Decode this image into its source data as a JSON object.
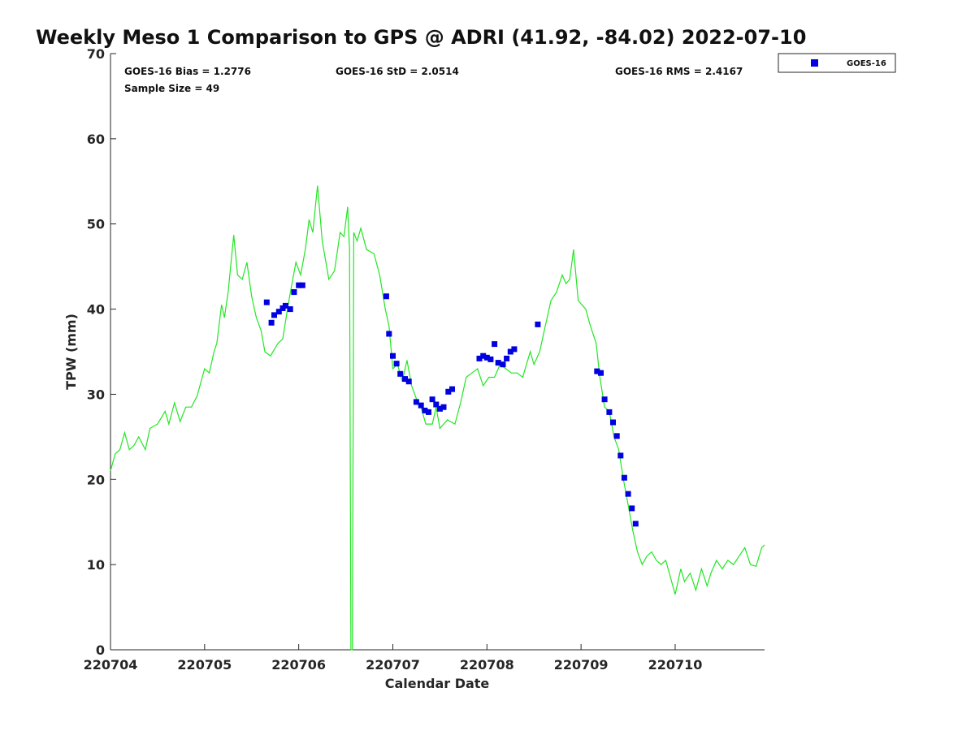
{
  "chart_data": {
    "type": "scatter",
    "title": "Weekly Meso 1 Comparison to GPS @ ADRI (41.92, -84.02) 2022-07-10",
    "xlabel": "Calendar Date",
    "ylabel": "TPW (mm)",
    "xlim": [
      220704,
      220711
    ],
    "ylim": [
      0,
      70
    ],
    "x_ticks": [
      "220704",
      "220705",
      "220706",
      "220707",
      "220708",
      "220709",
      "220710"
    ],
    "y_ticks": [
      "0",
      "10",
      "20",
      "30",
      "40",
      "50",
      "60",
      "70"
    ],
    "legend_position": "top-right",
    "legend": [
      {
        "name": "GOES-16",
        "marker": "square",
        "color": "#0000e0"
      }
    ],
    "stats": {
      "bias": "GOES-16 Bias = 1.2776",
      "std": "GOES-16 StD = 2.0514",
      "rms": "GOES-16 RMS = 2.4167",
      "sample": "Sample Size = 49"
    },
    "gps_line": {
      "color": "#22e622",
      "points": [
        [
          220704.0,
          21.0
        ],
        [
          220704.05,
          23.0
        ],
        [
          220704.1,
          23.5
        ],
        [
          220704.15,
          25.5
        ],
        [
          220704.2,
          23.5
        ],
        [
          220704.25,
          24.0
        ],
        [
          220704.3,
          25.0
        ],
        [
          220704.37,
          23.5
        ],
        [
          220704.42,
          26.0
        ],
        [
          220704.5,
          26.5
        ],
        [
          220704.58,
          28.0
        ],
        [
          220704.62,
          26.5
        ],
        [
          220704.68,
          29.0
        ],
        [
          220704.74,
          26.8
        ],
        [
          220704.8,
          28.5
        ],
        [
          220704.86,
          28.5
        ],
        [
          220704.92,
          29.8
        ],
        [
          220705.0,
          33.0
        ],
        [
          220705.05,
          32.5
        ],
        [
          220705.1,
          35.0
        ],
        [
          220705.13,
          36.0
        ],
        [
          220705.18,
          40.5
        ],
        [
          220705.21,
          39.0
        ],
        [
          220705.25,
          42.0
        ],
        [
          220705.29,
          46.5
        ],
        [
          220705.31,
          48.7
        ],
        [
          220705.35,
          44.0
        ],
        [
          220705.4,
          43.5
        ],
        [
          220705.45,
          45.5
        ],
        [
          220705.5,
          41.5
        ],
        [
          220705.55,
          39.0
        ],
        [
          220705.6,
          37.5
        ],
        [
          220705.64,
          35.0
        ],
        [
          220705.7,
          34.5
        ],
        [
          220705.78,
          36.0
        ],
        [
          220705.83,
          36.5
        ],
        [
          220705.88,
          40.0
        ],
        [
          220705.92,
          42.5
        ],
        [
          220705.97,
          45.5
        ],
        [
          220706.02,
          44.0
        ],
        [
          220706.07,
          47.0
        ],
        [
          220706.11,
          50.5
        ],
        [
          220706.15,
          49.0
        ],
        [
          220706.2,
          54.5
        ],
        [
          220706.25,
          48.0
        ],
        [
          220706.32,
          43.5
        ],
        [
          220706.38,
          44.5
        ],
        [
          220706.44,
          49.0
        ],
        [
          220706.48,
          48.5
        ],
        [
          220706.52,
          52.0
        ],
        [
          220706.54,
          47.0
        ],
        [
          220706.555,
          0.0
        ],
        [
          220706.57,
          0.0
        ],
        [
          220706.585,
          49.0
        ],
        [
          220706.62,
          48.0
        ],
        [
          220706.66,
          49.5
        ],
        [
          220706.72,
          47.0
        ],
        [
          220706.8,
          46.5
        ],
        [
          220706.86,
          44.0
        ],
        [
          220706.92,
          40.0
        ],
        [
          220706.96,
          38.0
        ],
        [
          220707.0,
          33.0
        ],
        [
          220707.05,
          33.5
        ],
        [
          220707.1,
          31.5
        ],
        [
          220707.15,
          34.0
        ],
        [
          220707.2,
          31.0
        ],
        [
          220707.25,
          29.5
        ],
        [
          220707.3,
          28.5
        ],
        [
          220707.35,
          26.5
        ],
        [
          220707.42,
          26.5
        ],
        [
          220707.46,
          28.5
        ],
        [
          220707.5,
          26.0
        ],
        [
          220707.58,
          27.0
        ],
        [
          220707.66,
          26.5
        ],
        [
          220707.72,
          29.0
        ],
        [
          220707.78,
          32.0
        ],
        [
          220707.84,
          32.5
        ],
        [
          220707.9,
          33.0
        ],
        [
          220707.96,
          31.0
        ],
        [
          220708.02,
          32.0
        ],
        [
          220708.08,
          32.0
        ],
        [
          220708.14,
          33.5
        ],
        [
          220708.2,
          33.0
        ],
        [
          220708.26,
          32.5
        ],
        [
          220708.32,
          32.5
        ],
        [
          220708.38,
          32.0
        ],
        [
          220708.46,
          35.0
        ],
        [
          220708.5,
          33.5
        ],
        [
          220708.56,
          35.0
        ],
        [
          220708.62,
          38.0
        ],
        [
          220708.68,
          41.0
        ],
        [
          220708.74,
          42.0
        ],
        [
          220708.8,
          44.0
        ],
        [
          220708.84,
          43.0
        ],
        [
          220708.88,
          43.5
        ],
        [
          220708.92,
          47.0
        ],
        [
          220708.97,
          41.0
        ],
        [
          220709.05,
          40.0
        ],
        [
          220709.1,
          38.0
        ],
        [
          220709.16,
          36.0
        ],
        [
          220709.2,
          32.0
        ],
        [
          220709.25,
          28.5
        ],
        [
          220709.3,
          28.0
        ],
        [
          220709.35,
          25.0
        ],
        [
          220709.4,
          23.5
        ],
        [
          220709.45,
          20.0
        ],
        [
          220709.5,
          17.0
        ],
        [
          220709.55,
          14.0
        ],
        [
          220709.6,
          11.5
        ],
        [
          220709.65,
          10.0
        ],
        [
          220709.7,
          11.0
        ],
        [
          220709.75,
          11.5
        ],
        [
          220709.8,
          10.5
        ],
        [
          220709.85,
          10.0
        ],
        [
          220709.9,
          10.5
        ],
        [
          220709.95,
          8.5
        ],
        [
          220710.0,
          6.5
        ],
        [
          220710.06,
          9.5
        ],
        [
          220710.1,
          8.0
        ],
        [
          220710.16,
          9.0
        ],
        [
          220710.22,
          7.0
        ],
        [
          220710.28,
          9.5
        ],
        [
          220710.34,
          7.5
        ],
        [
          220710.38,
          9.0
        ],
        [
          220710.44,
          10.5
        ],
        [
          220710.5,
          9.5
        ],
        [
          220710.56,
          10.5
        ],
        [
          220710.62,
          10.0
        ],
        [
          220710.68,
          11.0
        ],
        [
          220710.74,
          12.0
        ],
        [
          220710.8,
          10.0
        ],
        [
          220710.86,
          9.8
        ],
        [
          220710.92,
          12.0
        ],
        [
          220710.95,
          12.3
        ]
      ]
    },
    "series": [
      {
        "name": "GOES-16",
        "marker": "square",
        "color": "#0000e0",
        "points": [
          [
            220705.66,
            40.8
          ],
          [
            220705.71,
            38.4
          ],
          [
            220705.74,
            39.3
          ],
          [
            220705.79,
            39.7
          ],
          [
            220705.83,
            40.1
          ],
          [
            220705.86,
            40.4
          ],
          [
            220705.91,
            40.0
          ],
          [
            220705.95,
            42.0
          ],
          [
            220706.0,
            42.8
          ],
          [
            220706.04,
            42.8
          ],
          [
            220706.93,
            41.5
          ],
          [
            220706.96,
            37.1
          ],
          [
            220707.0,
            34.5
          ],
          [
            220707.04,
            33.6
          ],
          [
            220707.08,
            32.4
          ],
          [
            220707.13,
            31.8
          ],
          [
            220707.17,
            31.5
          ],
          [
            220707.25,
            29.1
          ],
          [
            220707.3,
            28.7
          ],
          [
            220707.34,
            28.1
          ],
          [
            220707.38,
            27.9
          ],
          [
            220707.42,
            29.4
          ],
          [
            220707.46,
            28.8
          ],
          [
            220707.5,
            28.3
          ],
          [
            220707.54,
            28.5
          ],
          [
            220707.59,
            30.3
          ],
          [
            220707.63,
            30.6
          ],
          [
            220707.92,
            34.2
          ],
          [
            220707.96,
            34.5
          ],
          [
            220708.0,
            34.3
          ],
          [
            220708.04,
            34.1
          ],
          [
            220708.08,
            35.9
          ],
          [
            220708.12,
            33.7
          ],
          [
            220708.17,
            33.5
          ],
          [
            220708.21,
            34.2
          ],
          [
            220708.25,
            35.0
          ],
          [
            220708.29,
            35.3
          ],
          [
            220708.54,
            38.2
          ],
          [
            220709.17,
            32.7
          ],
          [
            220709.21,
            32.5
          ],
          [
            220709.25,
            29.4
          ],
          [
            220709.3,
            27.9
          ],
          [
            220709.34,
            26.7
          ],
          [
            220709.38,
            25.1
          ],
          [
            220709.42,
            22.8
          ],
          [
            220709.46,
            20.2
          ],
          [
            220709.5,
            18.3
          ],
          [
            220709.54,
            16.6
          ],
          [
            220709.58,
            14.8
          ]
        ]
      }
    ]
  }
}
